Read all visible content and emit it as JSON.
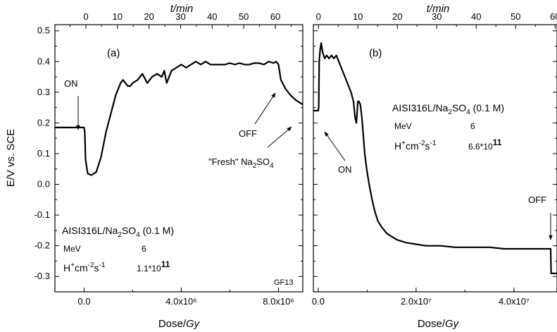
{
  "chart_data": [
    {
      "type": "line",
      "panel_label": "(a)",
      "xlabel": "Dose/",
      "xlabel_unit": "Gy",
      "ylabel": "E/V vs. SCE",
      "top_axis_label": "t/min",
      "xlim": [
        -1200000,
        9000000
      ],
      "ylim": [
        -0.35,
        0.52
      ],
      "top_xlim": [
        -9.8,
        68.7
      ],
      "x_ticks": [
        "0.0",
        "4.0x10⁶",
        "8.0x10⁶"
      ],
      "x_tick_values": [
        0,
        4000000,
        8000000
      ],
      "y_ticks": [
        "-0.3",
        "-0.2",
        "-0.1",
        "0.0",
        "0.1",
        "0.2",
        "0.3",
        "0.4",
        "0.5"
      ],
      "y_tick_values": [
        -0.3,
        -0.2,
        -0.1,
        0.0,
        0.1,
        0.2,
        0.3,
        0.4,
        0.5
      ],
      "top_ticks": [
        "0",
        "10",
        "20",
        "30",
        "40",
        "50",
        "60"
      ],
      "top_tick_values": [
        0,
        10,
        20,
        30,
        40,
        50,
        60
      ],
      "series": [
        {
          "x": [
            -1200000,
            -600000,
            0,
            30000,
            60000,
            150000,
            300000,
            500000,
            700000,
            900000,
            1100000,
            1300000,
            1500000,
            1600000,
            1700000,
            1800000,
            1900000,
            2000000,
            2200000,
            2400000,
            2600000,
            2800000,
            3000000,
            3200000,
            3300000,
            3400000,
            3600000,
            3800000,
            4000000,
            4200000,
            4400000,
            4600000,
            4800000,
            5000000,
            5200000,
            5400000,
            5600000,
            5800000,
            6000000,
            6200000,
            6400000,
            6600000,
            6800000,
            7000000,
            7200000,
            7400000,
            7600000,
            7800000,
            7900000,
            8000000,
            8100000,
            8300000,
            8500000,
            8700000,
            9000000
          ],
          "y": [
            0.185,
            0.185,
            0.185,
            0.17,
            0.08,
            0.035,
            0.03,
            0.04,
            0.09,
            0.17,
            0.23,
            0.29,
            0.33,
            0.34,
            0.33,
            0.32,
            0.32,
            0.33,
            0.34,
            0.36,
            0.33,
            0.35,
            0.36,
            0.35,
            0.37,
            0.33,
            0.37,
            0.38,
            0.39,
            0.38,
            0.39,
            0.4,
            0.39,
            0.4,
            0.39,
            0.39,
            0.39,
            0.39,
            0.395,
            0.39,
            0.395,
            0.39,
            0.39,
            0.395,
            0.395,
            0.39,
            0.4,
            0.395,
            0.4,
            0.39,
            0.34,
            0.31,
            0.29,
            0.275,
            0.26
          ]
        }
      ],
      "annotations": [
        {
          "text": "ON"
        },
        {
          "text": "OFF"
        },
        {
          "text": "\"Fresh\" Na",
          "sub": "2",
          "tail": "SO",
          "sub2": "4"
        },
        {
          "text": "GF13"
        }
      ],
      "info": {
        "material": "AISI316L/Na",
        "material_sub": "2",
        "material_tail": "SO",
        "material_sub2": "4",
        "material_conc": " (0.1 M)",
        "energy_label": "MeV",
        "energy_value": "6",
        "flux_label_base": "H",
        "flux_label_sup1": "+",
        "flux_label_mid": "cm",
        "flux_label_sup2": "-2",
        "flux_label_s": "s",
        "flux_label_sup3": "-1",
        "flux_value_base": "1.1*10",
        "flux_value_exp": "11"
      }
    },
    {
      "type": "line",
      "panel_label": "(b)",
      "xlabel": "Dose/",
      "xlabel_unit": "Gy",
      "top_axis_label": "t/min",
      "xlim": [
        -1000000,
        48800000
      ],
      "ylim": [
        -0.35,
        0.52
      ],
      "top_xlim": [
        -1.3,
        60.5
      ],
      "x_ticks": [
        "0.0",
        "2.0x10⁷",
        "4.0x10⁷"
      ],
      "x_tick_values": [
        0,
        20000000,
        40000000
      ],
      "top_ticks": [
        "0",
        "10",
        "20",
        "30",
        "40",
        "50",
        "60"
      ],
      "top_tick_values": [
        0,
        10,
        20,
        30,
        40,
        50,
        60
      ],
      "series": [
        {
          "x": [
            -1000000,
            -500000,
            0,
            100000,
            200000,
            400000,
            600000,
            900000,
            1300000,
            1700000,
            2200000,
            2700000,
            3200000,
            3700000,
            4200000,
            4700000,
            5200000,
            5700000,
            6200000,
            6700000,
            7200000,
            7500000,
            7800000,
            8100000,
            8300000,
            8600000,
            8900000,
            9200000,
            9500000,
            9900000,
            10400000,
            11000000,
            11600000,
            12200000,
            13000000,
            14000000,
            15000000,
            16000000,
            18000000,
            20000000,
            22000000,
            25000000,
            28000000,
            30000000,
            32000000,
            35000000,
            38000000,
            41000000,
            44000000,
            46000000,
            47200000,
            47500000,
            47600000,
            48000000,
            48800000
          ],
          "y": [
            0.24,
            0.24,
            0.24,
            0.25,
            0.4,
            0.44,
            0.46,
            0.43,
            0.41,
            0.42,
            0.41,
            0.42,
            0.41,
            0.42,
            0.4,
            0.38,
            0.36,
            0.34,
            0.32,
            0.3,
            0.27,
            0.22,
            0.2,
            0.27,
            0.27,
            0.26,
            0.22,
            0.16,
            0.1,
            0.05,
            0.0,
            -0.05,
            -0.09,
            -0.12,
            -0.14,
            -0.16,
            -0.17,
            -0.18,
            -0.19,
            -0.195,
            -0.2,
            -0.2,
            -0.205,
            -0.205,
            -0.205,
            -0.205,
            -0.21,
            -0.21,
            -0.21,
            -0.21,
            -0.21,
            -0.21,
            -0.29,
            -0.29,
            -0.29
          ]
        }
      ],
      "annotations": [
        {
          "text": "ON"
        },
        {
          "text": "OFF"
        }
      ],
      "info": {
        "material": "AISI316L/Na",
        "material_sub": "2",
        "material_tail": "SO",
        "material_sub2": "4",
        "material_conc": " (0.1 M)",
        "energy_label": "MeV",
        "energy_value": "6",
        "flux_label_base": "H",
        "flux_label_sup1": "+",
        "flux_label_mid": "cm",
        "flux_label_sup2": "-2",
        "flux_label_s": "s",
        "flux_label_sup3": "-1",
        "flux_value_base": "6.6*10",
        "flux_value_exp": "11"
      }
    }
  ]
}
